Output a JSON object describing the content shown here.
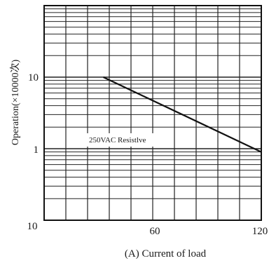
{
  "chart_data": {
    "type": "line",
    "title": "",
    "xlabel": "(A) Current of load",
    "ylabel": "Operation(×10000次)",
    "x_ticks": [
      "10",
      "60",
      "120"
    ],
    "y_ticks": [
      "10",
      "1"
    ],
    "xlim": [
      10,
      120
    ],
    "ylim": [
      0.1,
      100
    ],
    "y_scale": "log",
    "grid": true,
    "series": [
      {
        "x": [
          40,
          120
        ],
        "y": [
          10,
          0.9
        ]
      }
    ],
    "annotations": [
      "250VAC Resistlve"
    ]
  }
}
